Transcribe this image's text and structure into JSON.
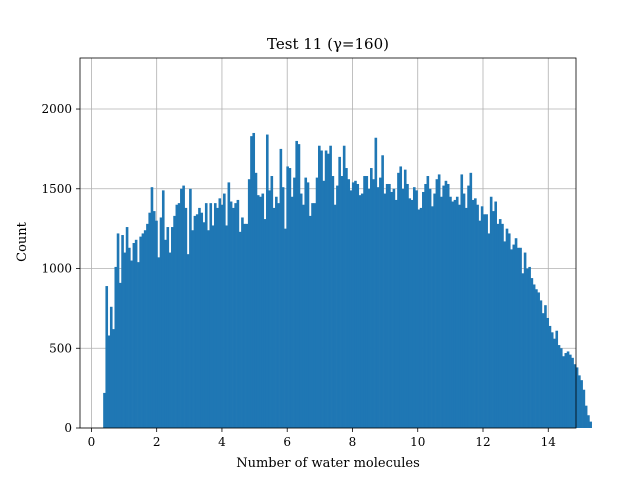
{
  "chart_data": {
    "type": "bar",
    "title": "Test 11 (γ=160)",
    "xlabel": "Number of water molecules",
    "ylabel": "Count",
    "xlim": [
      -0.35,
      14.85
    ],
    "ylim": [
      0,
      2320
    ],
    "xticks": [
      0,
      2,
      4,
      6,
      8,
      10,
      12,
      14
    ],
    "yticks": [
      0,
      500,
      1000,
      1500,
      2000
    ],
    "grid": true,
    "color": "#1f77b4",
    "bin_start": 0.36,
    "bin_width": 0.0693,
    "values": [
      220,
      890,
      580,
      760,
      620,
      1010,
      1220,
      910,
      1210,
      1100,
      1260,
      1130,
      1050,
      1160,
      1180,
      1040,
      1200,
      1220,
      1240,
      1280,
      1350,
      1510,
      1360,
      1300,
      1070,
      1320,
      1490,
      1180,
      1260,
      1100,
      1260,
      1330,
      1400,
      1410,
      1500,
      1520,
      1380,
      1090,
      1500,
      1240,
      1330,
      1340,
      1380,
      1350,
      1290,
      1410,
      1240,
      1410,
      1270,
      1410,
      1380,
      1440,
      1400,
      1470,
      1270,
      1540,
      1420,
      1380,
      1410,
      1430,
      1230,
      1320,
      1280,
      1280,
      1560,
      1830,
      1850,
      1600,
      1460,
      1450,
      1470,
      1310,
      1840,
      1490,
      1580,
      1380,
      1450,
      1410,
      1750,
      1510,
      1250,
      1640,
      1630,
      1450,
      1570,
      1800,
      1780,
      1470,
      1400,
      1570,
      1540,
      1330,
      1410,
      1410,
      1570,
      1770,
      1740,
      1550,
      1740,
      1720,
      1770,
      1580,
      1400,
      1520,
      1700,
      1580,
      1770,
      1630,
      1560,
      1490,
      1540,
      1550,
      1530,
      1460,
      1470,
      1580,
      1580,
      1500,
      1630,
      1560,
      1820,
      1510,
      1570,
      1710,
      1470,
      1530,
      1530,
      1480,
      1500,
      1430,
      1600,
      1640,
      1500,
      1620,
      1530,
      1440,
      1430,
      1510,
      1490,
      1370,
      1380,
      1480,
      1530,
      1580,
      1500,
      1390,
      1470,
      1560,
      1590,
      1450,
      1520,
      1550,
      1530,
      1450,
      1420,
      1430,
      1450,
      1400,
      1590,
      1470,
      1380,
      1520,
      1600,
      1430,
      1440,
      1400,
      1300,
      1390,
      1340,
      1340,
      1220,
      1450,
      1360,
      1420,
      1280,
      1310,
      1280,
      1170,
      1250,
      1220,
      1120,
      1150,
      1190,
      1130,
      1130,
      970,
      1100,
      1000,
      1010,
      940,
      900,
      870,
      850,
      800,
      720,
      770,
      690,
      640,
      600,
      560,
      610,
      520,
      500,
      450,
      470,
      480,
      460,
      440,
      400,
      380,
      330,
      300,
      240,
      140,
      80,
      40
    ]
  }
}
